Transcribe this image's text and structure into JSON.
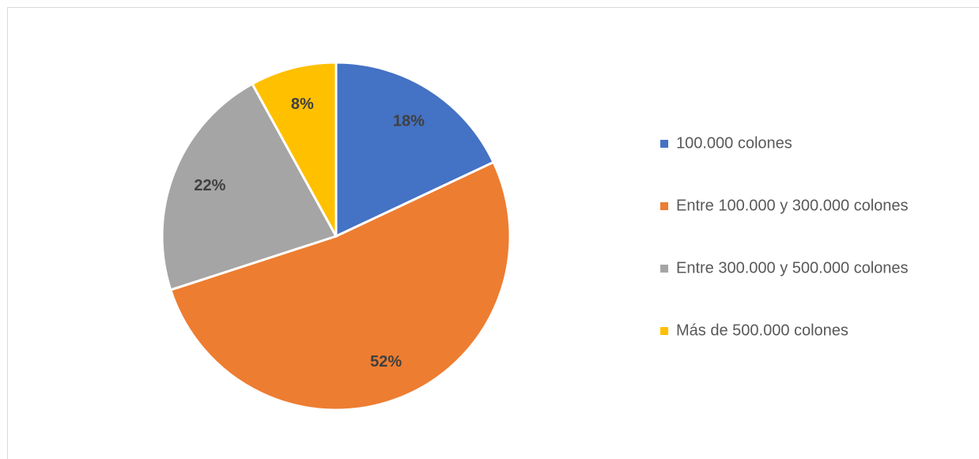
{
  "chart_data": {
    "type": "pie",
    "categories": [
      "100.000 colones",
      "Entre 100.000 y 300.000 colones",
      "Entre 300.000 y 500.000 colones",
      "Más de 500.000 colones"
    ],
    "values": [
      18,
      52,
      22,
      8
    ],
    "value_labels": [
      "18%",
      "52%",
      "22%",
      "8%"
    ],
    "colors": [
      "#4472c4",
      "#ed7d31",
      "#a5a5a5",
      "#ffc000"
    ],
    "legend": "right"
  }
}
